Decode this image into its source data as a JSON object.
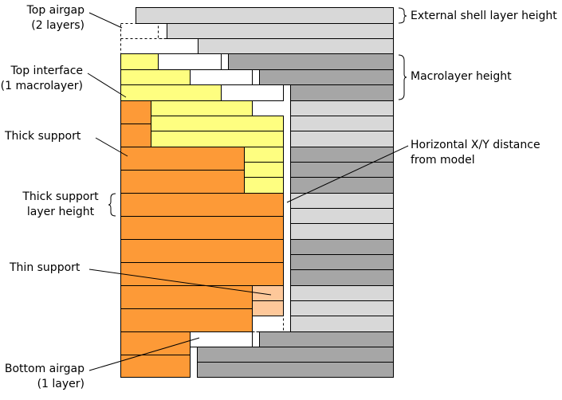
{
  "labels": {
    "top_airgap": [
      "Top airgap",
      "(2 layers)"
    ],
    "top_interface": [
      "Top interface",
      "(1 macrolayer)"
    ],
    "thick_support": [
      "Thick support"
    ],
    "thick_support_layer_height": [
      "Thick support",
      "layer height"
    ],
    "thin_support": [
      "Thin support"
    ],
    "bottom_airgap": [
      "Bottom airgap",
      "(1 layer)"
    ],
    "external_shell_layer_height": [
      "External shell layer height"
    ],
    "macrolayer_height": [
      "Macrolayer height"
    ],
    "horizontal_xy_distance": [
      "Horizontal X/Y distance",
      "from model"
    ]
  },
  "colors": {
    "thick_support": "#fd9a37",
    "thin_support": "#fec89a",
    "interface": "#fefe80",
    "shell_light": "#d8d8d8",
    "shell_dark": "#a6a6a6",
    "airgap": "#ffffff",
    "outline": "#000000"
  }
}
